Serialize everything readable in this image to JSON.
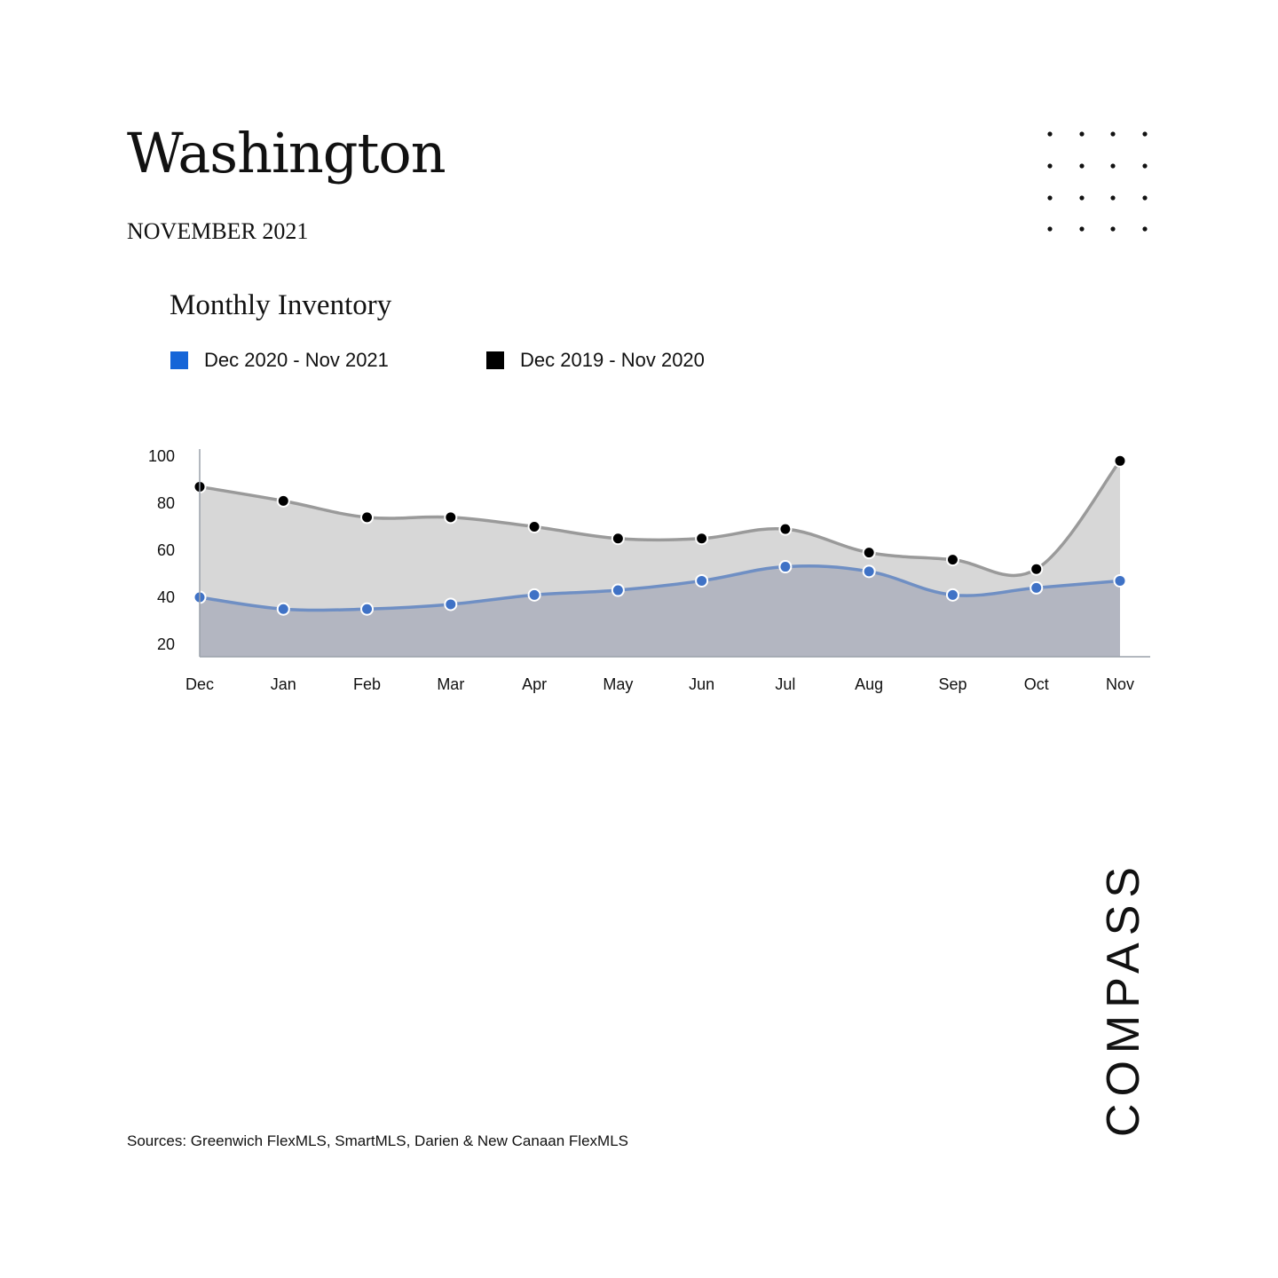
{
  "header": {
    "title": "Washington",
    "subtitle": "NOVEMBER 2021"
  },
  "chart_data": {
    "type": "area",
    "title": "Monthly Inventory",
    "categories": [
      "Dec",
      "Jan",
      "Feb",
      "Mar",
      "Apr",
      "May",
      "Jun",
      "Jul",
      "Aug",
      "Sep",
      "Oct",
      "Nov"
    ],
    "series": [
      {
        "name": "Dec 2020 - Nov 2021",
        "color": "#6f8fc4",
        "marker_color": "#3f72c6",
        "fill": "#b3b6c1",
        "values": [
          40,
          35,
          35,
          37,
          41,
          43,
          47,
          53,
          51,
          41,
          44,
          47
        ]
      },
      {
        "name": "Dec 2019 - Nov 2020",
        "color": "#9a9a9a",
        "marker_color": "#000000",
        "fill": "#d7d7d7",
        "values": [
          87,
          81,
          74,
          74,
          70,
          65,
          65,
          69,
          59,
          56,
          52,
          98
        ]
      }
    ],
    "legend_swatch_colors": [
      "#1565d8",
      "#000000"
    ],
    "y_ticks": [
      100,
      80,
      60,
      40,
      20
    ],
    "ylim": [
      15,
      100
    ],
    "grid": false,
    "legend_position": "top-left"
  },
  "footer": {
    "sources": "Sources: Greenwich FlexMLS, SmartMLS, Darien & New Canaan FlexMLS"
  },
  "brand": {
    "logo_text": "COMPASS"
  }
}
